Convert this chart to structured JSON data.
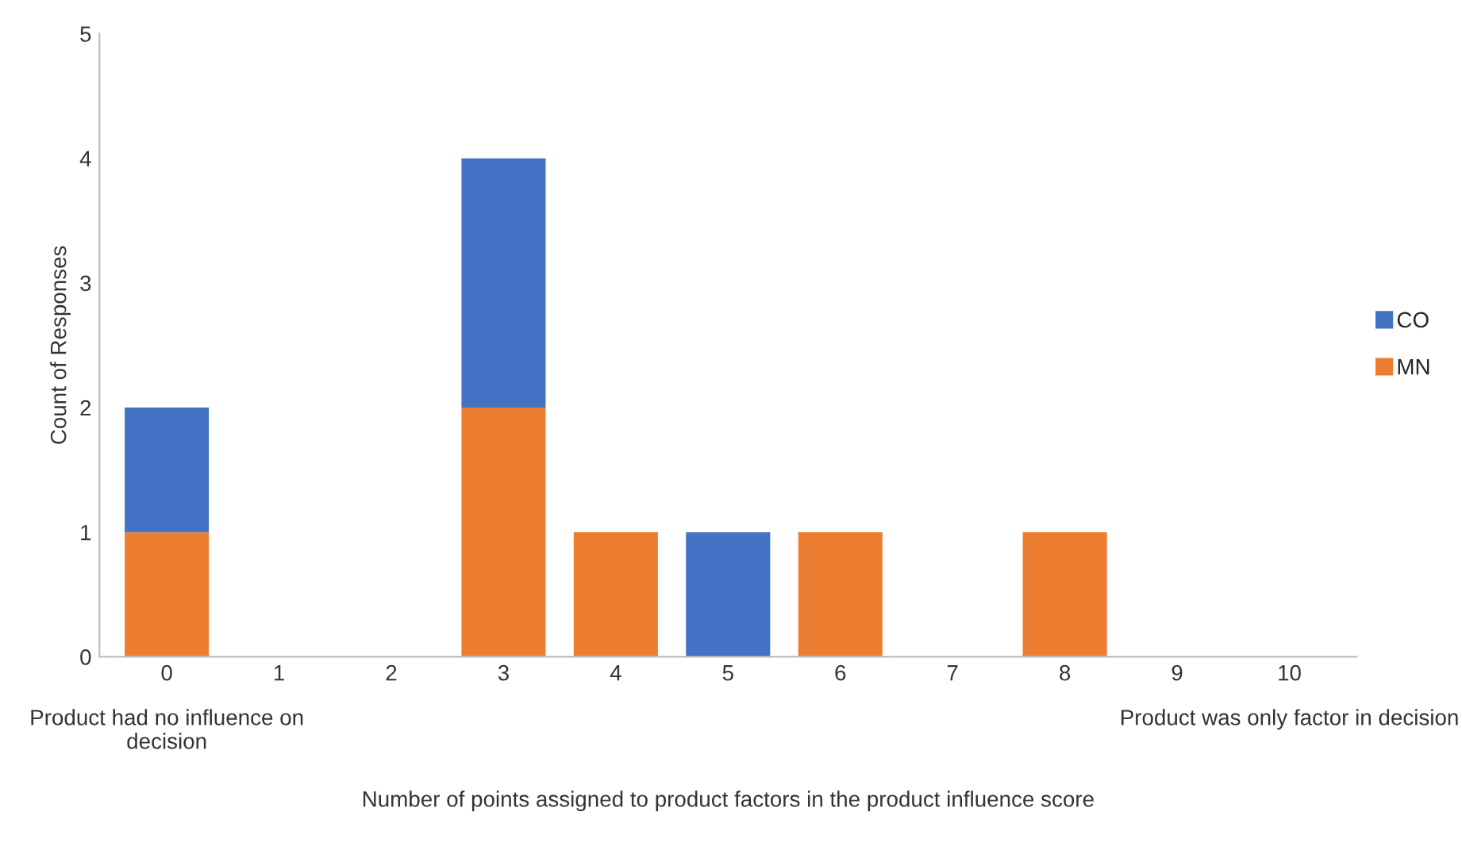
{
  "chart_data": {
    "type": "bar",
    "stacked": true,
    "xlabel": "Number of points assigned to product factors in the product influence score",
    "ylabel": "Count of Responses",
    "categories": [
      "0",
      "1",
      "2",
      "3",
      "4",
      "5",
      "6",
      "7",
      "8",
      "9",
      "10"
    ],
    "series": [
      {
        "name": "MN",
        "color": "#ed7d31",
        "values": [
          1,
          0,
          0,
          2,
          1,
          0,
          1,
          0,
          1,
          0,
          0
        ]
      },
      {
        "name": "CO",
        "color": "#4472c4",
        "values": [
          1,
          0,
          0,
          2,
          0,
          1,
          0,
          0,
          0,
          0,
          0
        ]
      }
    ],
    "ylim": [
      0,
      5
    ],
    "yticks": [
      0,
      1,
      2,
      3,
      4,
      5
    ],
    "grid": false,
    "legend": "right",
    "annotations": [
      "Product had no influence on decision",
      "Product was only factor in decision"
    ]
  }
}
